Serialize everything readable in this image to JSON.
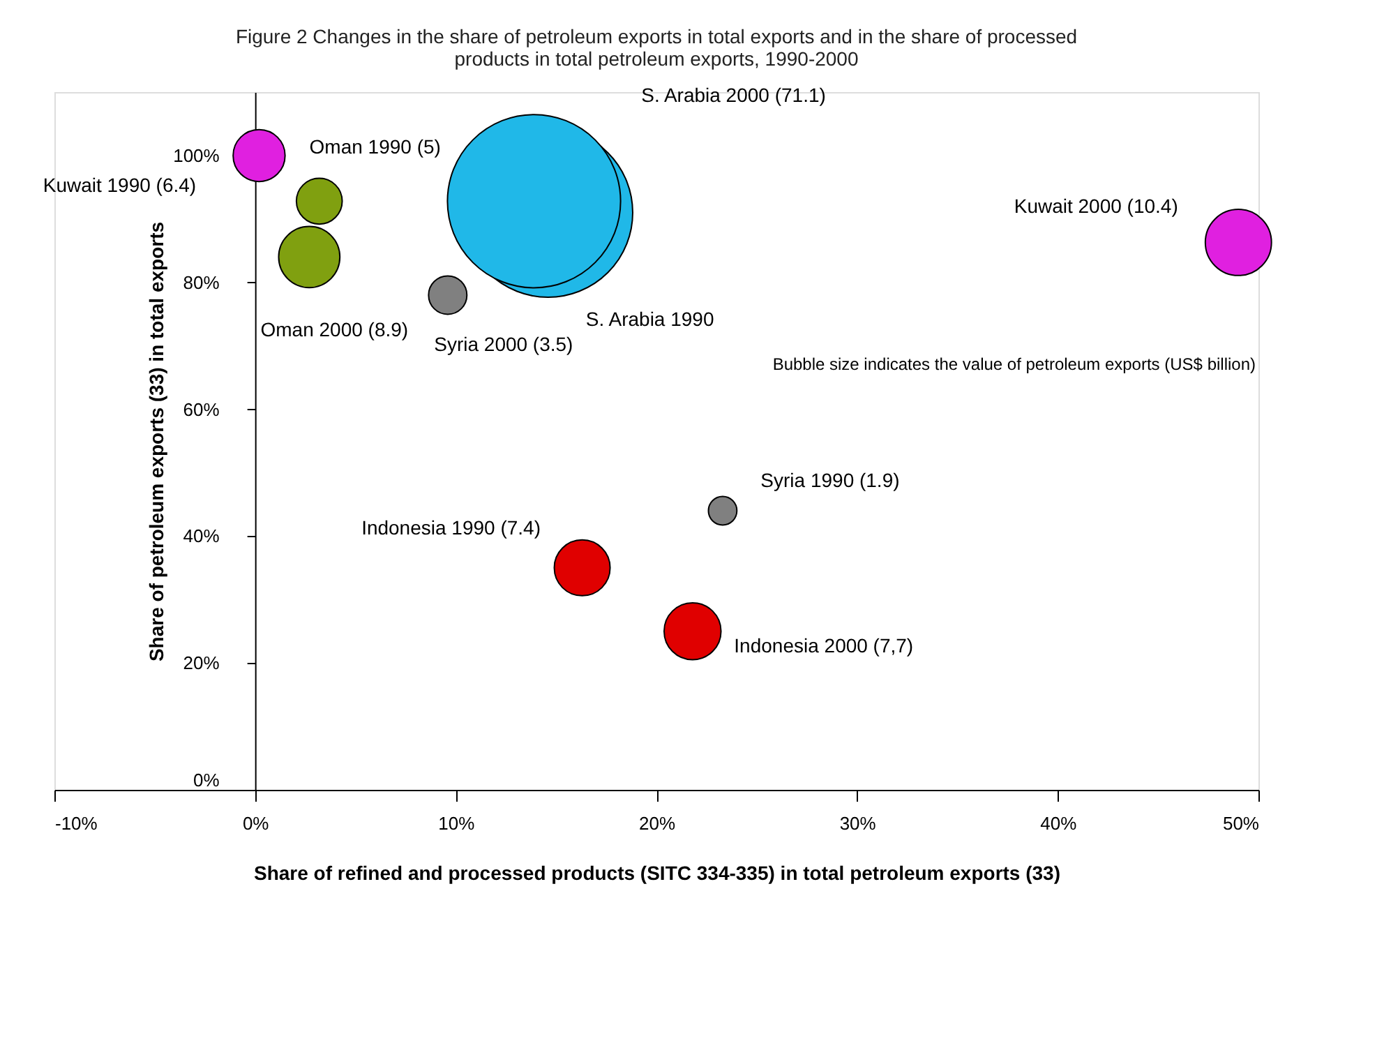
{
  "chart_data": {
    "type": "bubble",
    "title": "Figure 2 Changes in the share of petroleum exports in total exports and in the share of processed\nproducts in total petroleum exports, 1990-2000",
    "xlabel": "Share of refined and processed products (SITC 334-335) in total petroleum exports (33)",
    "ylabel": "Share of petroleum exports (33) in total exports",
    "xlim": [
      -10,
      50
    ],
    "xticks": [
      {
        "value": -10,
        "label": "-10%"
      },
      {
        "value": 0,
        "label": "0%"
      },
      {
        "value": 10,
        "label": "10%"
      },
      {
        "value": 20,
        "label": "20%"
      },
      {
        "value": 30,
        "label": "30%"
      },
      {
        "value": 40,
        "label": "40%"
      },
      {
        "value": 50,
        "label": "50%"
      }
    ],
    "ylim": [
      0,
      110
    ],
    "yticks": [
      {
        "value": 0,
        "label": "0%"
      },
      {
        "value": 20,
        "label": "20%"
      },
      {
        "value": 40,
        "label": "40%"
      },
      {
        "value": 60,
        "label": "60%"
      },
      {
        "value": 80,
        "label": "80%"
      },
      {
        "value": 100,
        "label": "100%"
      }
    ],
    "grid": false,
    "legend": false,
    "series": [
      {
        "color": "#20b8e8",
        "x": [
          14.6,
          13.9
        ],
        "values": [
          91,
          92.8
        ],
        "sizes": [
          0.956,
          1
        ],
        "value_labels": [
          "S. Arabia 1990",
          "S. Arabia 2000 (71.1)"
        ]
      },
      {
        "color": "#e020e0",
        "x": [
          0.2,
          49
        ],
        "values": [
          100,
          86.3
        ],
        "sizes": [
          0.09,
          0.146
        ],
        "value_labels": [
          "Kuwait 1990 (6.4)",
          "Kuwait 2000 (10.4)"
        ]
      },
      {
        "color": "#80a010",
        "x": [
          3.2,
          2.7
        ],
        "values": [
          92.8,
          84
        ],
        "sizes": [
          0.07,
          0.125
        ],
        "value_labels": [
          "Oman 1990 (5)",
          "Oman 2000 (8.9)"
        ]
      },
      {
        "color": "#808080",
        "x": [
          23.3,
          9.6
        ],
        "values": [
          44,
          78
        ],
        "sizes": [
          0.027,
          0.049
        ],
        "value_labels": [
          "Syria 1990 (1.9)",
          "Syria 2000 (3.5)"
        ]
      },
      {
        "color": "#e00000",
        "x": [
          16.3,
          21.8
        ],
        "values": [
          35,
          25
        ],
        "sizes": [
          0.104,
          0.108
        ],
        "value_labels": [
          "Indonesia 1990 (7.4)",
          "Indonesia 2000 (7,7)"
        ]
      }
    ],
    "annotations": [
      "Bubble size indicates the value of petroleum exports (US$ billion)"
    ]
  }
}
